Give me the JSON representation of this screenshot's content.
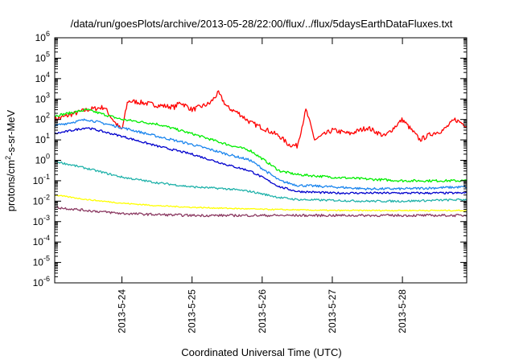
{
  "chart_data": {
    "type": "line",
    "title": "/data/run/goesPlots/archive/2013-05-28/22:00/flux/../flux/5daysEarthDataFluxes.txt",
    "xlabel": "Coordinated Universal Time (UTC)",
    "ylabel": "protons/cm²-s-sr-MeV",
    "ylabel_parts": {
      "base": "protons/cm",
      "sup": "2",
      "rest": "-s-sr-MeV"
    },
    "yscale": "log",
    "ylim_exponents": [
      -6,
      6
    ],
    "y_tick_exponents": [
      -6,
      -5,
      -4,
      -3,
      -2,
      -1,
      0,
      1,
      2,
      3,
      4,
      5,
      6
    ],
    "y_tick_base": "10",
    "xlim": [
      "2013-05-23T01:00",
      "2013-05-28T22:00"
    ],
    "x_ticks": [
      {
        "label": "2013-5-24",
        "time": "2013-05-24T00:00"
      },
      {
        "label": "2013-5-25",
        "time": "2013-05-25T00:00"
      },
      {
        "label": "2013-5-26",
        "time": "2013-05-26T00:00"
      },
      {
        "label": "2013-5-27",
        "time": "2013-05-27T00:00"
      },
      {
        "label": "2013-5-28",
        "time": "2013-05-28T00:00"
      }
    ],
    "grid": false,
    "series": [
      {
        "color": "#ff0000",
        "noise": 0.12,
        "x": [
          "2013-05-23T01:00",
          "2013-05-23T08:00",
          "2013-05-23T12:00",
          "2013-05-23T18:00",
          "2013-05-23T20:00",
          "2013-05-23T22:00",
          "2013-05-24T00:00",
          "2013-05-24T02:00",
          "2013-05-24T06:00",
          "2013-05-24T12:00",
          "2013-05-24T18:00",
          "2013-05-24T20:00",
          "2013-05-25T00:00",
          "2013-05-25T06:00",
          "2013-05-25T09:00",
          "2013-05-25T12:00",
          "2013-05-25T16:00",
          "2013-05-25T20:00",
          "2013-05-26T00:00",
          "2013-05-26T06:00",
          "2013-05-26T09:00",
          "2013-05-26T12:00",
          "2013-05-26T15:00",
          "2013-05-26T18:00",
          "2013-05-27T00:00",
          "2013-05-27T06:00",
          "2013-05-27T12:00",
          "2013-05-27T18:00",
          "2013-05-28T00:00",
          "2013-05-28T06:00",
          "2013-05-28T10:00",
          "2013-05-28T14:00",
          "2013-05-28T18:00",
          "2013-05-28T22:00"
        ],
        "y": [
          100,
          200,
          300,
          400,
          150,
          60,
          30,
          800,
          700,
          500,
          400,
          700,
          300,
          600,
          2000,
          400,
          200,
          70,
          40,
          15,
          6,
          5,
          300,
          10,
          30,
          20,
          40,
          15,
          100,
          10,
          20,
          30,
          100,
          50
        ]
      },
      {
        "color": "#00ee00",
        "noise": 0.06,
        "x": [
          "2013-05-23T01:00",
          "2013-05-23T12:00",
          "2013-05-24T00:00",
          "2013-05-24T12:00",
          "2013-05-25T00:00",
          "2013-05-25T12:00",
          "2013-05-25T20:00",
          "2013-05-26T06:00",
          "2013-05-26T12:00",
          "2013-05-27T00:00",
          "2013-05-27T12:00",
          "2013-05-28T00:00",
          "2013-05-28T22:00"
        ],
        "y": [
          150,
          300,
          100,
          60,
          20,
          6,
          3,
          0.3,
          0.2,
          0.15,
          0.12,
          0.1,
          0.1
        ]
      },
      {
        "color": "#1c86ee",
        "noise": 0.06,
        "x": [
          "2013-05-23T01:00",
          "2013-05-23T12:00",
          "2013-05-24T00:00",
          "2013-05-24T12:00",
          "2013-05-25T00:00",
          "2013-05-25T12:00",
          "2013-05-25T20:00",
          "2013-05-26T06:00",
          "2013-05-26T12:00",
          "2013-05-27T00:00",
          "2013-05-27T12:00",
          "2013-05-28T00:00",
          "2013-05-28T22:00"
        ],
        "y": [
          50,
          100,
          40,
          15,
          6,
          2,
          1,
          0.1,
          0.06,
          0.05,
          0.04,
          0.04,
          0.05
        ]
      },
      {
        "color": "#0000cd",
        "noise": 0.05,
        "x": [
          "2013-05-23T01:00",
          "2013-05-23T12:00",
          "2013-05-24T00:00",
          "2013-05-24T12:00",
          "2013-05-25T00:00",
          "2013-05-25T12:00",
          "2013-05-25T20:00",
          "2013-05-26T06:00",
          "2013-05-26T12:00",
          "2013-05-27T00:00",
          "2013-05-27T12:00",
          "2013-05-28T00:00",
          "2013-05-28T22:00"
        ],
        "y": [
          20,
          40,
          15,
          5,
          2,
          0.6,
          0.3,
          0.05,
          0.03,
          0.025,
          0.025,
          0.025,
          0.025
        ]
      },
      {
        "color": "#20b2aa",
        "noise": 0.05,
        "x": [
          "2013-05-23T01:00",
          "2013-05-23T12:00",
          "2013-05-24T00:00",
          "2013-05-24T12:00",
          "2013-05-25T00:00",
          "2013-05-25T12:00",
          "2013-05-25T20:00",
          "2013-05-26T06:00",
          "2013-05-26T12:00",
          "2013-05-27T00:00",
          "2013-05-27T12:00",
          "2013-05-28T00:00",
          "2013-05-28T22:00"
        ],
        "y": [
          0.9,
          0.4,
          0.15,
          0.08,
          0.05,
          0.04,
          0.03,
          0.015,
          0.012,
          0.011,
          0.01,
          0.01,
          0.012
        ]
      },
      {
        "color": "#ffff00",
        "noise": 0.03,
        "x": [
          "2013-05-23T01:00",
          "2013-05-23T12:00",
          "2013-05-24T00:00",
          "2013-05-24T12:00",
          "2013-05-25T00:00",
          "2013-05-26T00:00",
          "2013-05-27T00:00",
          "2013-05-28T00:00",
          "2013-05-28T22:00"
        ],
        "y": [
          0.02,
          0.012,
          0.008,
          0.006,
          0.005,
          0.004,
          0.0035,
          0.0035,
          0.0035
        ]
      },
      {
        "color": "#8b3a62",
        "noise": 0.06,
        "x": [
          "2013-05-23T01:00",
          "2013-05-23T12:00",
          "2013-05-24T00:00",
          "2013-05-24T12:00",
          "2013-05-25T00:00",
          "2013-05-26T00:00",
          "2013-05-27T00:00",
          "2013-05-28T00:00",
          "2013-05-28T22:00"
        ],
        "y": [
          0.005,
          0.0035,
          0.0025,
          0.0022,
          0.002,
          0.002,
          0.002,
          0.002,
          0.002
        ]
      }
    ]
  }
}
